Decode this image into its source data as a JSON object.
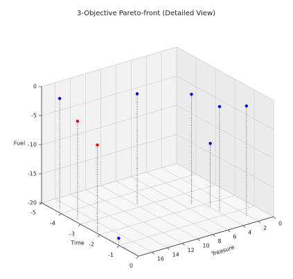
{
  "chart_data": {
    "type": "scatter3d",
    "title": "3-Objective Pareto-front (Detailed View)",
    "xlabel": "Treasure",
    "ylabel": "Time",
    "zlabel": "Fuel",
    "x": [
      17.2,
      17.4,
      17.6,
      17.6,
      9.8,
      5.2,
      3.8,
      2.3,
      4.0
    ],
    "y": [
      -4.3,
      -3.3,
      -2.2,
      -1.1,
      -3.2,
      -2.2,
      -1.3,
      -0.5,
      -1.7
    ],
    "z": [
      -1,
      -3,
      -5,
      -19,
      -1,
      -1,
      -2,
      -1,
      -9
    ],
    "colors": [
      "#0000ff",
      "#ff0000",
      "#ff0000",
      "#0000ff",
      "#0000ff",
      "#0000ff",
      "#0000ff",
      "#0000ff",
      "#0000ff"
    ],
    "xlim": [
      0,
      17.8
    ],
    "ylim": [
      -5,
      0
    ],
    "zlim": [
      -20,
      0
    ],
    "xticks": [
      0,
      2,
      4,
      6,
      8,
      10,
      12,
      14,
      16
    ],
    "yticks": [
      -5,
      -4,
      -3,
      -2,
      -1,
      0
    ],
    "zticks": [
      -20,
      -15,
      -10,
      -5,
      0
    ],
    "grid": true
  }
}
